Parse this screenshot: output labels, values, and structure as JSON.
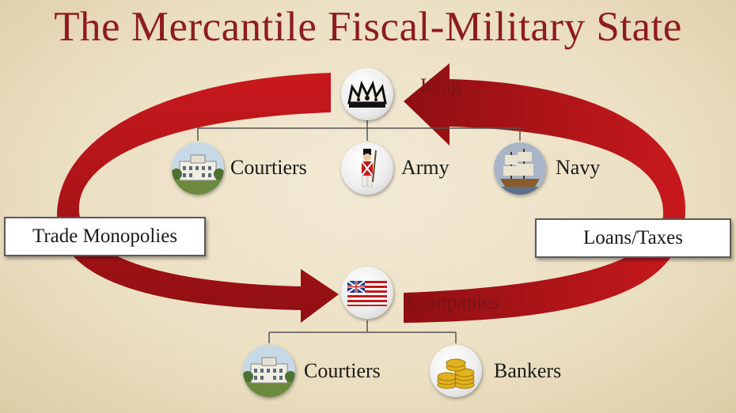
{
  "title": "The Mercantile Fiscal-Military State",
  "nodes": {
    "king": "King",
    "courtiers_top": "Courtiers",
    "army": "Army",
    "navy": "Navy",
    "companies": "Companies",
    "courtiers_bottom": "Courtiers",
    "bankers": "Bankers"
  },
  "boxes": {
    "left": "Trade Monopolies",
    "right": "Loans/Taxes"
  },
  "colors": {
    "title": "#8e1c1e",
    "arrow": "#b01418",
    "background": "#efe5cc"
  },
  "icons": {
    "king": "crown-icon",
    "courtiers": "mansion-icon",
    "army": "soldier-icon",
    "navy": "ship-icon",
    "companies": "flag-icon",
    "bankers": "coins-icon"
  }
}
